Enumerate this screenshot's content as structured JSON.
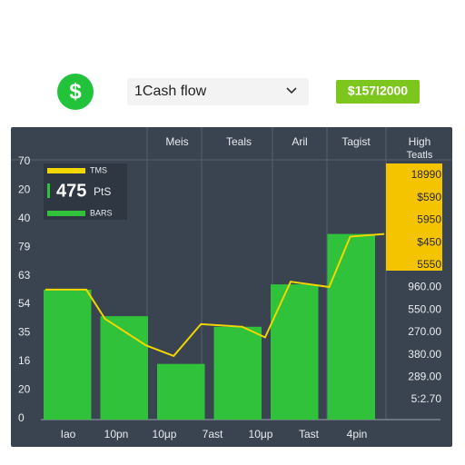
{
  "header": {
    "icon": "$",
    "dropdown": "1Cash flow",
    "badge": "$157I2000"
  },
  "chart_data": {
    "type": "bar",
    "columns": [
      "Meis",
      "Teals",
      "Aril",
      "Tagist",
      "High"
    ],
    "column_sub": "Teatls",
    "legend_value": "475",
    "legend_unit": "PtS",
    "y_labels": [
      "70",
      "20",
      "40",
      "79",
      "63",
      "54",
      "35",
      "16",
      "20",
      "0"
    ],
    "right_labels": [
      "18990",
      "$590",
      "5950",
      "$450",
      "5550",
      "960.00",
      "550.00",
      "270.00",
      "380.00",
      "289.00",
      "5:2.70"
    ],
    "x_labels": [
      "Iao",
      "10pn",
      "10μp",
      "7ast",
      "10μp",
      "Tast",
      "4pin"
    ],
    "ylim": [
      0,
      100
    ],
    "xlim": [
      0,
      6
    ],
    "series": [
      {
        "name": "BARS",
        "color": "#2fc23a",
        "values": [
          49,
          39,
          21,
          35,
          51,
          70
        ]
      },
      {
        "name": "TMS",
        "color": "#f2d600",
        "type": "line",
        "x": [
          0.08,
          0.8,
          1.13,
          1.85,
          2.34,
          2.82,
          3.55,
          3.95,
          4.4,
          5.08,
          5.45,
          6.05
        ],
        "values": [
          49,
          49,
          38,
          28,
          24,
          36,
          35,
          31,
          52,
          50,
          69,
          70
        ]
      }
    ]
  }
}
